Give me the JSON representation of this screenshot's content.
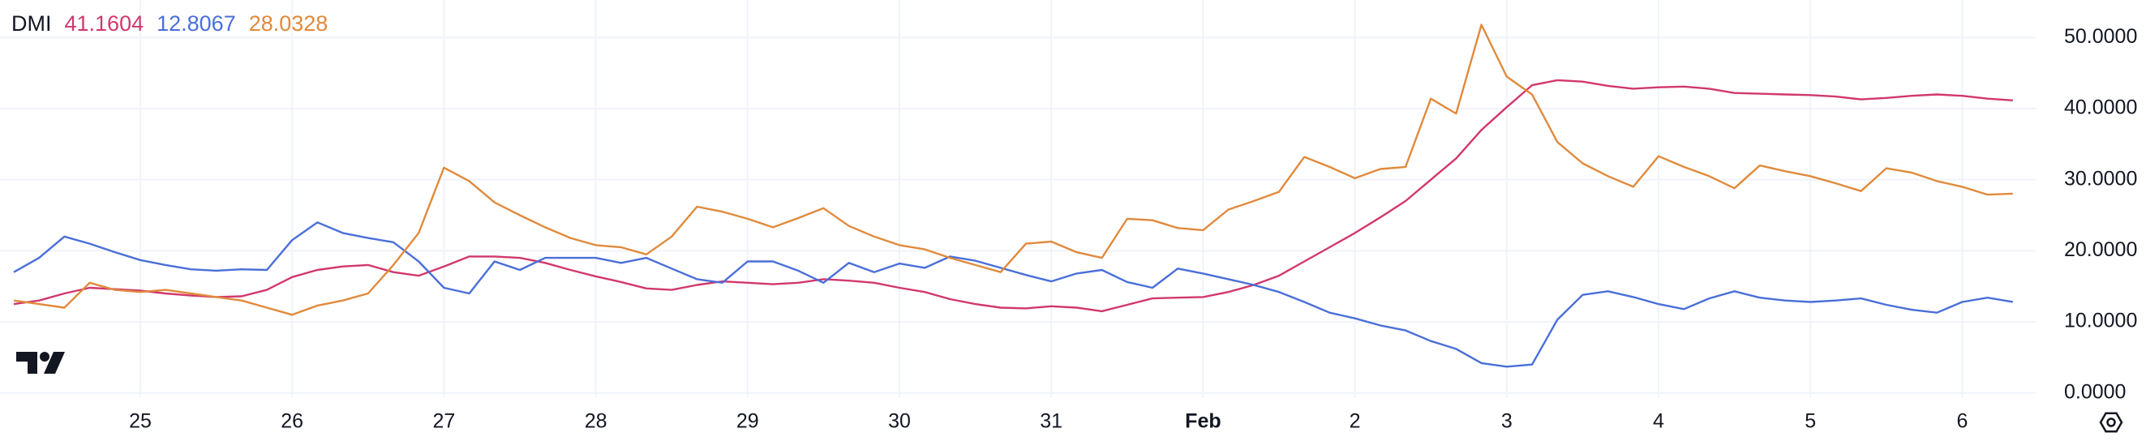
{
  "chart_data": {
    "type": "line",
    "title": "DMI",
    "categories": [
      null,
      null,
      null,
      null,
      null,
      "25",
      null,
      null,
      null,
      null,
      null,
      "26",
      null,
      null,
      null,
      null,
      null,
      "27",
      null,
      null,
      null,
      null,
      null,
      "28",
      null,
      null,
      null,
      null,
      null,
      "29",
      null,
      null,
      null,
      null,
      null,
      "30",
      null,
      null,
      null,
      null,
      null,
      "31",
      null,
      null,
      null,
      null,
      null,
      "Feb",
      null,
      null,
      null,
      null,
      null,
      "2",
      null,
      null,
      null,
      null,
      null,
      "3",
      null,
      null,
      null,
      null,
      null,
      "4",
      null,
      null,
      null,
      null,
      null,
      "5",
      null,
      null,
      null,
      null,
      null,
      "6",
      null,
      null
    ],
    "series": [
      {
        "color": "#d1386c",
        "values": [
          12.5,
          13,
          14,
          14.8,
          14.6,
          14.4,
          14,
          13.7,
          13.5,
          13.6,
          14.5,
          16.3,
          17.3,
          17.8,
          18,
          17,
          16.5,
          17.8,
          19.2,
          19.2,
          19,
          18.3,
          17.3,
          16.4,
          15.6,
          14.7,
          14.5,
          15.2,
          15.7,
          15.5,
          15.3,
          15.5,
          16,
          15.8,
          15.5,
          14.8,
          14.2,
          13.2,
          12.5,
          12,
          11.9,
          12.2,
          12,
          11.5,
          12.4,
          13.3,
          13.4,
          13.5,
          14.2,
          15.2,
          16.5,
          18.5,
          20.5,
          22.5,
          24.7,
          27,
          30,
          33,
          37,
          40.2,
          43.3,
          44,
          43.8,
          43.2,
          42.8,
          43,
          43.1,
          42.8,
          42.2,
          42.1,
          42,
          41.9,
          41.7,
          41.3,
          41.5,
          41.8,
          42,
          41.8,
          41.4,
          41.1604
        ]
      },
      {
        "color": "#4a6fd8",
        "values": [
          17,
          19,
          22,
          21,
          19.8,
          18.7,
          18,
          17.4,
          17.2,
          17.4,
          17.3,
          21.5,
          24,
          22.5,
          21.8,
          21.2,
          18.5,
          14.8,
          14,
          18.5,
          17.3,
          19,
          19,
          19,
          18.3,
          19,
          17.5,
          16,
          15.5,
          18.5,
          18.5,
          17.2,
          15.5,
          18.3,
          17,
          18.2,
          17.6,
          19.2,
          18.6,
          17.6,
          16.6,
          15.7,
          16.8,
          17.3,
          15.6,
          14.8,
          17.5,
          16.8,
          16,
          15.2,
          14.2,
          12.8,
          11.3,
          10.5,
          9.5,
          8.8,
          7.3,
          6.2,
          4.2,
          3.7,
          4,
          10.3,
          13.8,
          14.3,
          13.5,
          12.5,
          11.8,
          13.3,
          14.3,
          13.4,
          13,
          12.8,
          13,
          13.3,
          12.4,
          11.7,
          11.3,
          12.8,
          13.4,
          12.8067
        ]
      },
      {
        "color": "#e08a3c",
        "values": [
          13,
          12.5,
          12,
          15.5,
          14.5,
          14.2,
          14.5,
          14,
          13.5,
          13,
          12,
          11,
          12.3,
          13,
          14,
          18,
          22.5,
          31.7,
          29.8,
          26.8,
          25,
          23.3,
          21.8,
          20.8,
          20.5,
          19.5,
          22,
          26.2,
          25.5,
          24.5,
          23.3,
          24.6,
          26,
          23.5,
          22,
          20.8,
          20.2,
          19,
          18,
          17,
          21,
          21.3,
          19.8,
          19,
          24.5,
          24.3,
          23.2,
          22.9,
          25.8,
          27,
          28.3,
          33.2,
          31.8,
          30.2,
          31.5,
          31.8,
          41.4,
          39.3,
          51.8,
          44.5,
          42,
          35.3,
          32.3,
          30.5,
          29,
          33.3,
          31.8,
          30.5,
          28.8,
          32,
          31.2,
          30.5,
          29.5,
          28.4,
          31.6,
          31,
          29.8,
          29,
          27.9,
          28.0328
        ]
      }
    ],
    "ylim": [
      -0.6,
      53
    ],
    "yticks": [
      {
        "value": 0,
        "label": "0.0000"
      },
      {
        "value": 10,
        "label": "10.0000"
      },
      {
        "value": 20,
        "label": "20.0000"
      },
      {
        "value": 30,
        "label": "30.0000"
      },
      {
        "value": 40,
        "label": "40.0000"
      },
      {
        "value": 50,
        "label": "50.0000"
      }
    ],
    "grid": true
  }
}
